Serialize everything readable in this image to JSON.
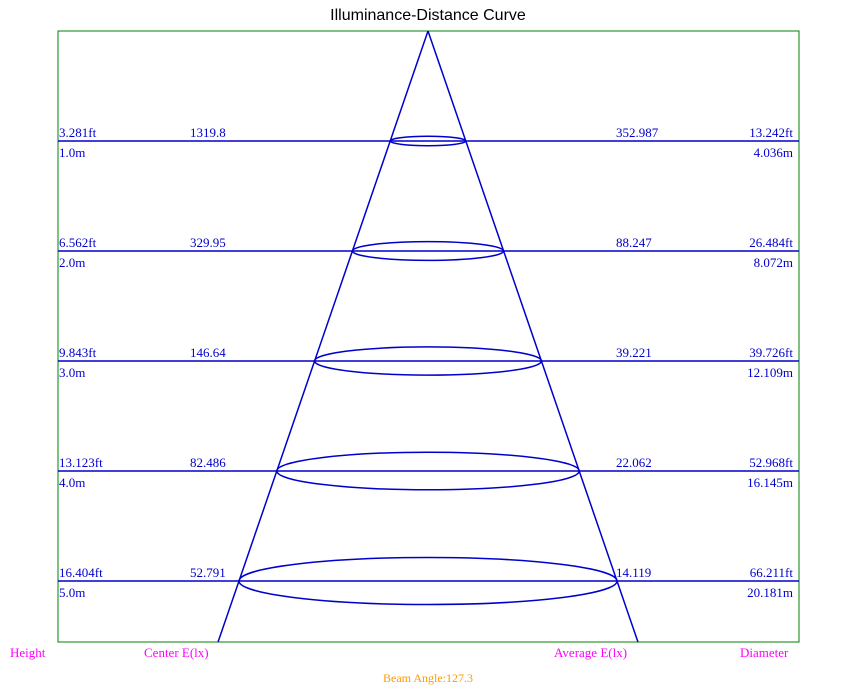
{
  "chart_data": {
    "type": "illuminance-distance-curve",
    "title": "Illuminance-Distance Curve",
    "beam_angle_label": "Beam Angle:127.3",
    "footer_labels": {
      "height": "Height",
      "center": "Center E(lx)",
      "average": "Average E(lx)",
      "diameter": "Diameter"
    },
    "rows": [
      {
        "height_m": 1.0,
        "height_ft_label": "3.281ft",
        "height_m_label": "1.0m",
        "center_lx": "1319.8",
        "average_lx": "352.987",
        "diameter_ft_label": "13.242ft",
        "diameter_m_label": "4.036m"
      },
      {
        "height_m": 2.0,
        "height_ft_label": "6.562ft",
        "height_m_label": "2.0m",
        "center_lx": "329.95",
        "average_lx": "88.247",
        "diameter_ft_label": "26.484ft",
        "diameter_m_label": "8.072m"
      },
      {
        "height_m": 3.0,
        "height_ft_label": "9.843ft",
        "height_m_label": "3.0m",
        "center_lx": "146.64",
        "average_lx": "39.221",
        "diameter_ft_label": "39.726ft",
        "diameter_m_label": "12.109m"
      },
      {
        "height_m": 4.0,
        "height_ft_label": "13.123ft",
        "height_m_label": "4.0m",
        "center_lx": "82.486",
        "average_lx": "22.062",
        "diameter_ft_label": "52.968ft",
        "diameter_m_label": "16.145m"
      },
      {
        "height_m": 5.0,
        "height_ft_label": "16.404ft",
        "height_m_label": "5.0m",
        "center_lx": "52.791",
        "average_lx": "14.119",
        "diameter_ft_label": "66.211ft",
        "diameter_m_label": "20.181m"
      }
    ],
    "colors": {
      "lines": "#0000cc",
      "frame": "#008000",
      "footer": "#ff00ff",
      "beam_angle": "#ff9900"
    }
  }
}
